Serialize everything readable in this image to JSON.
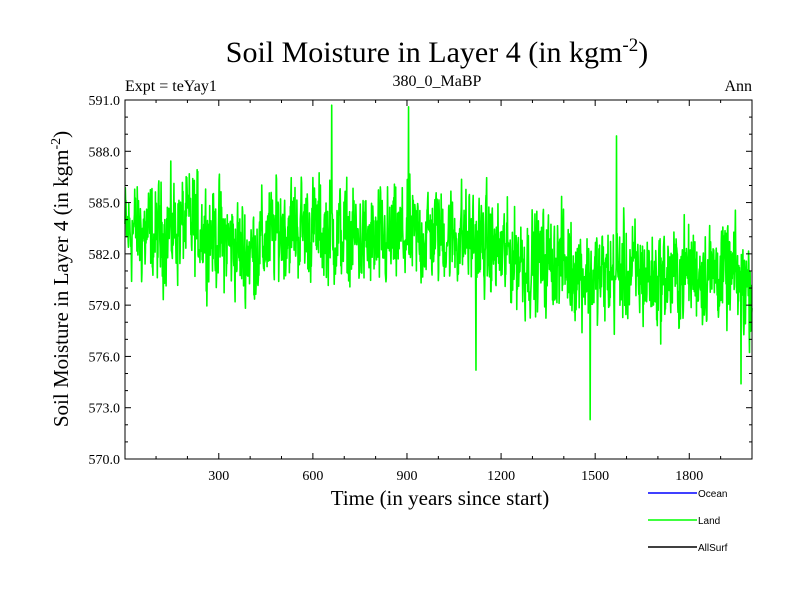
{
  "chart_data": {
    "type": "line",
    "title_main": "Soil Moisture in Layer 4 (in kgm",
    "title_sup": "-2",
    "title_close": ")",
    "subtitle_left": "Expt = teYay1",
    "subtitle_center": "380_0_MaBP",
    "subtitle_right": "Ann",
    "xlabel": "Time (in years since start)",
    "ylabel_main": "Soil Moisture in Layer 4 (in kgm",
    "ylabel_sup": "-2",
    "ylabel_close": ")",
    "xlim": [
      1,
      2000
    ],
    "ylim": [
      570.0,
      591.0
    ],
    "xticks": [
      300,
      600,
      900,
      1200,
      1500,
      1800
    ],
    "xtick_labels": [
      "300",
      "600",
      "900",
      "1200",
      "1500",
      "1800"
    ],
    "yticks": [
      570.0,
      573.0,
      576.0,
      579.0,
      582.0,
      585.0,
      588.0,
      591.0
    ],
    "ytick_labels": [
      "570.0",
      "573.0",
      "576.0",
      "579.0",
      "582.0",
      "585.0",
      "588.0",
      "591.0"
    ],
    "legend": [
      {
        "name": "Ocean",
        "color": "#0000ff"
      },
      {
        "name": "Land",
        "color": "#00ff00"
      },
      {
        "name": "AllSurf",
        "color": "#000000"
      }
    ],
    "series": [
      {
        "name": "Land",
        "color": "#00ff00",
        "note": "annual values approx; trend anchors (year, mean) with noise amplitude",
        "anchors": [
          [
            1,
            583.5
          ],
          [
            100,
            583.0
          ],
          [
            200,
            583.8
          ],
          [
            300,
            583.0
          ],
          [
            400,
            582.0
          ],
          [
            500,
            583.5
          ],
          [
            600,
            583.5
          ],
          [
            700,
            583.0
          ],
          [
            800,
            582.5
          ],
          [
            900,
            583.0
          ],
          [
            1000,
            583.2
          ],
          [
            1100,
            583.0
          ],
          [
            1200,
            582.0
          ],
          [
            1300,
            581.5
          ],
          [
            1400,
            581.5
          ],
          [
            1500,
            580.5
          ],
          [
            1600,
            581.0
          ],
          [
            1700,
            580.5
          ],
          [
            1800,
            581.0
          ],
          [
            1900,
            581.0
          ],
          [
            2000,
            580.0
          ]
        ],
        "amplitude": 2.0,
        "extremes": [
          [
            660,
            590.7
          ],
          [
            905,
            590.6
          ],
          [
            1568,
            588.9
          ],
          [
            1484,
            572.3
          ],
          [
            1120,
            575.2
          ],
          [
            1965,
            574.4
          ]
        ]
      }
    ]
  }
}
